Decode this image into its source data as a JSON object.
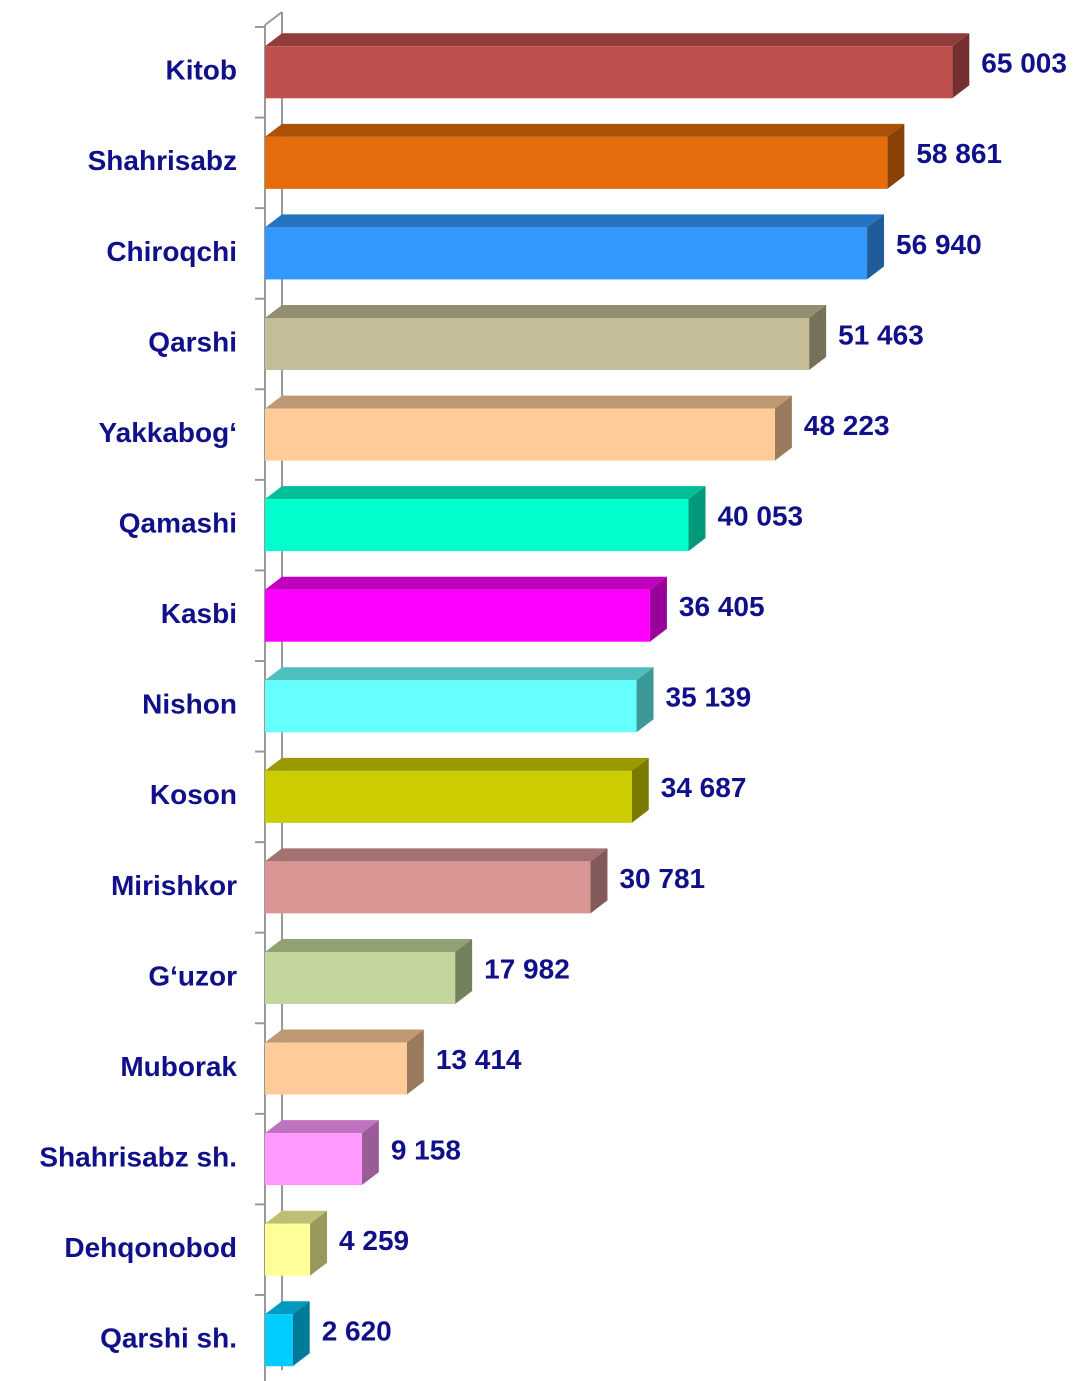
{
  "chart_data": {
    "type": "bar",
    "orientation": "horizontal",
    "categories": [
      "Kitob",
      "Shahrisabz",
      "Chiroqchi",
      "Qarshi",
      "Yakkabog‘",
      "Qamashi",
      "Kasbi",
      "Nishon",
      "Koson",
      "Mirishkor",
      "G‘uzor",
      "Muborak",
      "Shahrisabz sh.",
      "Dehqonobod",
      "Qarshi sh."
    ],
    "values": [
      65003,
      58861,
      56940,
      51463,
      48223,
      40053,
      36405,
      35139,
      34687,
      30781,
      17982,
      13414,
      9158,
      4259,
      2620
    ],
    "value_labels": [
      "65 003",
      "58 861",
      "56 940",
      "51 463",
      "48 223",
      "40 053",
      "36 405",
      "35 139",
      "34 687",
      "30 781",
      "17 982",
      "13 414",
      "9 158",
      "4 259",
      "2 620"
    ],
    "colors": [
      "#c0504d",
      "#e46c0a",
      "#3399ff",
      "#c4bd97",
      "#ffcc99",
      "#00ffcc",
      "#ff00ff",
      "#66ffff",
      "#cccc00",
      "#d99694",
      "#c3d69b",
      "#ffcc99",
      "#ff99ff",
      "#ffff99",
      "#00ccff"
    ],
    "xlim": [
      0,
      75000
    ]
  }
}
